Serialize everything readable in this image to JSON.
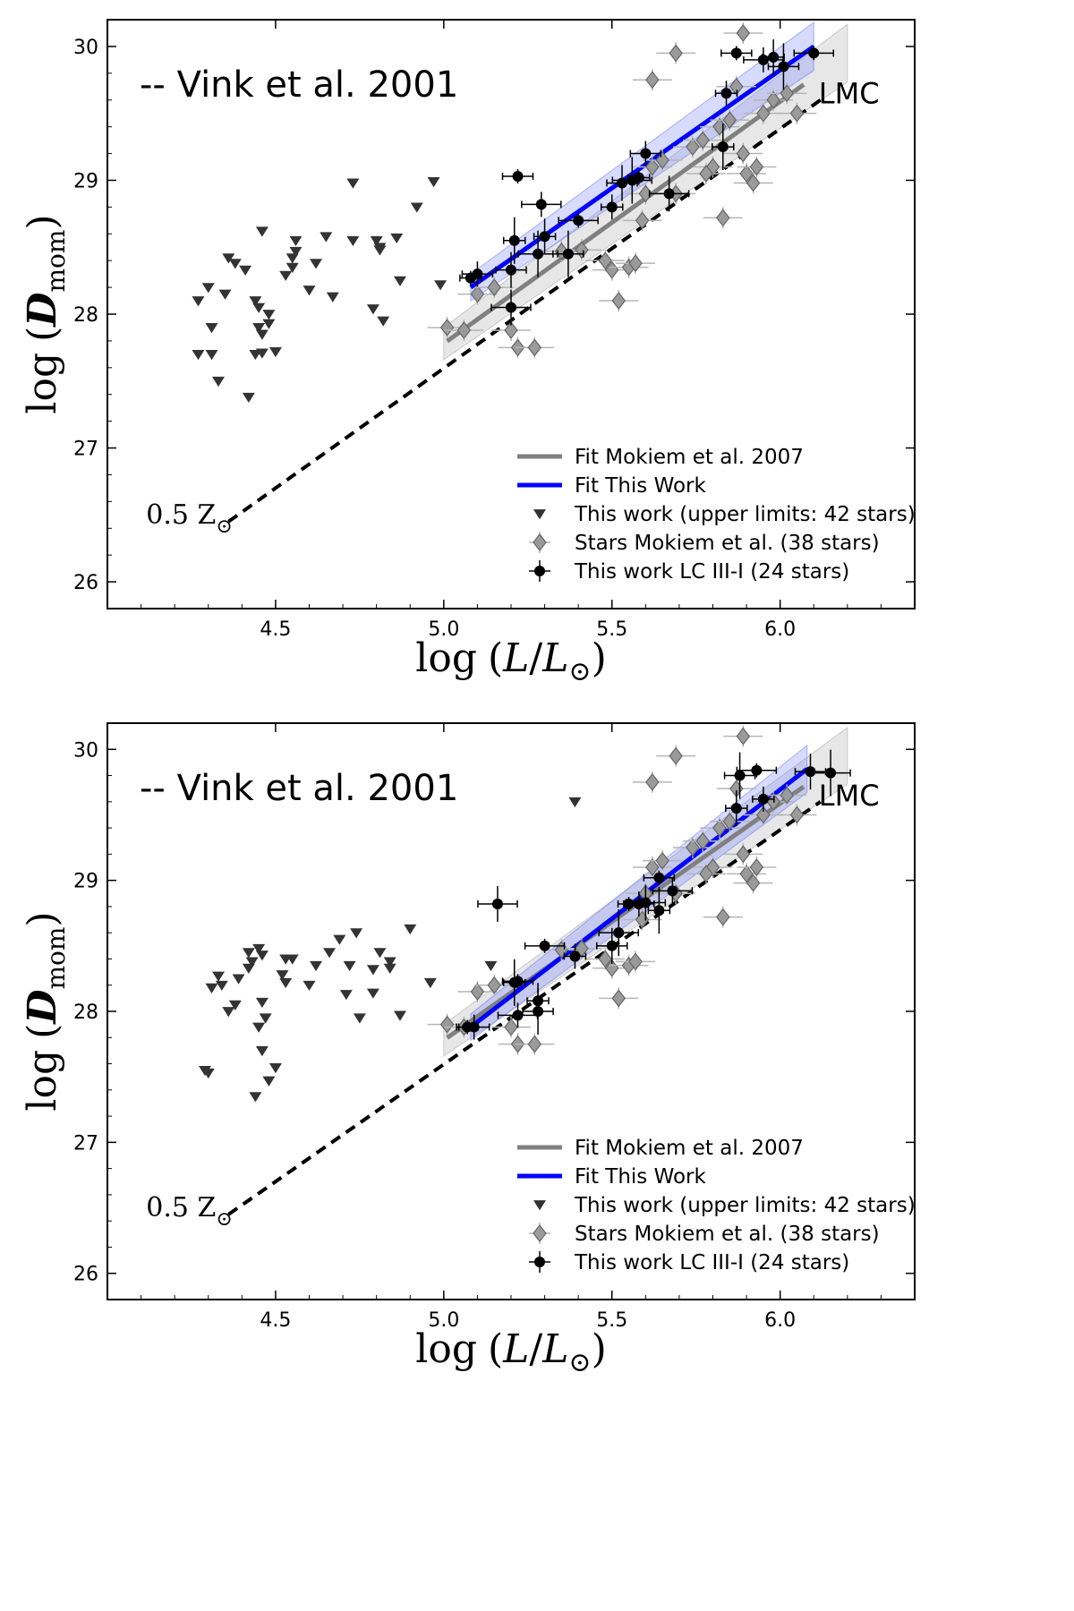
{
  "chart_data": [
    {
      "type": "scatter",
      "panel": "top",
      "xlabel": "log (L/L⊙)",
      "ylabel": "log (Dₘₒₘ)",
      "xlabel_main": "log",
      "xlabel_open": "(",
      "xlabel_L": "L",
      "xlabel_slash": "/",
      "xlabel_sub": "⊙",
      "xlabel_close": ")",
      "ylabel_main": "log",
      "ylabel_open": "(",
      "ylabel_D": "D",
      "ylabel_sub": "mom",
      "ylabel_close": ")",
      "xlim": [
        4.0,
        6.4
      ],
      "ylim": [
        25.8,
        30.2
      ],
      "xticks": [
        "4.5",
        "5.0",
        "5.5",
        "6.0"
      ],
      "yticks": [
        "26",
        "27",
        "28",
        "29",
        "30"
      ],
      "title_annotation": "-- Vink et al. 2001",
      "annotation_left": "0.5 Z⊙",
      "annotation_left_main": "0.5 Z",
      "annotation_left_sub": "⊙",
      "annotation_right": "LMC",
      "legend": [
        "Fit Mokiem et al. 2007",
        "Fit This Work",
        "This work (upper limits: 42 stars)",
        "Stars Mokiem et al. (38 stars)",
        "This work LC III-I (24 stars)"
      ],
      "vink_line": {
        "x": [
          4.36,
          6.12
        ],
        "y": [
          26.45,
          29.6
        ]
      },
      "fit_mokiem": {
        "x": [
          5.0,
          6.2
        ],
        "y": [
          27.78,
          29.95
        ],
        "band": 0.12
      },
      "fit_this_work": {
        "x": [
          5.08,
          6.1
        ],
        "y": [
          28.2,
          30.0
        ],
        "band": 0.1
      },
      "series": [
        {
          "name": "This work (upper limits: 42 stars)",
          "x": [
            4.27,
            4.31,
            4.33,
            4.31,
            4.27,
            4.36,
            4.38,
            4.41,
            4.46,
            4.44,
            4.45,
            4.46,
            4.48,
            4.5,
            4.46,
            4.42,
            4.44,
            4.45,
            4.48,
            4.53,
            4.55,
            4.55,
            4.56,
            4.6,
            4.62,
            4.65,
            4.67,
            4.73,
            4.73,
            4.8,
            4.81,
            4.82,
            4.86,
            4.92,
            4.97,
            4.56,
            4.79,
            4.99,
            4.87,
            4.81,
            4.3,
            4.35
          ],
          "y": [
            28.1,
            27.9,
            27.5,
            27.7,
            27.7,
            28.42,
            28.38,
            28.33,
            28.62,
            28.1,
            28.05,
            27.85,
            27.93,
            27.72,
            27.71,
            27.38,
            27.7,
            27.9,
            28.0,
            28.29,
            28.35,
            28.42,
            28.55,
            28.18,
            28.38,
            28.58,
            28.13,
            28.98,
            28.55,
            28.55,
            28.5,
            27.95,
            28.57,
            28.8,
            28.99,
            28.47,
            28.04,
            28.22,
            28.25,
            28.48,
            28.2,
            28.15
          ]
        },
        {
          "name": "Stars Mokiem et al. (38 stars)",
          "x": [
            5.01,
            5.06,
            5.1,
            5.15,
            5.2,
            5.22,
            5.27,
            5.35,
            5.41,
            5.48,
            5.5,
            5.52,
            5.55,
            5.57,
            5.59,
            5.6,
            5.62,
            5.65,
            5.69,
            5.74,
            5.77,
            5.8,
            5.82,
            5.85,
            5.87,
            5.89,
            5.9,
            5.92,
            5.93,
            5.95,
            5.98,
            6.02,
            6.05,
            5.62,
            5.69,
            5.89,
            5.78,
            5.83
          ],
          "y": [
            27.9,
            27.88,
            28.15,
            28.2,
            27.88,
            27.75,
            27.75,
            28.47,
            28.48,
            28.4,
            28.33,
            28.1,
            28.35,
            28.38,
            28.7,
            28.9,
            29.1,
            29.15,
            28.9,
            29.25,
            29.3,
            29.1,
            29.4,
            29.45,
            29.7,
            29.2,
            29.05,
            28.98,
            29.1,
            29.5,
            29.6,
            29.65,
            29.5,
            29.75,
            29.95,
            30.1,
            29.05,
            28.72
          ]
        },
        {
          "name": "This work LC III-I (24 stars)",
          "x": [
            5.08,
            5.1,
            5.2,
            5.21,
            5.22,
            5.29,
            5.3,
            5.37,
            5.4,
            5.5,
            5.53,
            5.56,
            5.58,
            5.6,
            5.67,
            5.83,
            5.87,
            5.95,
            5.98,
            6.01,
            6.1,
            5.84,
            5.2,
            5.28
          ],
          "y": [
            28.27,
            28.3,
            28.05,
            28.55,
            29.03,
            28.82,
            28.58,
            28.45,
            28.7,
            28.8,
            28.98,
            29.0,
            29.02,
            29.2,
            28.9,
            29.25,
            29.95,
            29.9,
            29.92,
            29.85,
            29.95,
            29.65,
            28.33,
            28.45
          ]
        }
      ]
    },
    {
      "type": "scatter",
      "panel": "bottom",
      "xlabel": "log (L/L⊙)",
      "ylabel": "log (Dₘₒₘ)",
      "xlabel_main": "log",
      "xlabel_open": "(",
      "xlabel_L": "L",
      "xlabel_slash": "/",
      "xlabel_sub": "⊙",
      "xlabel_close": ")",
      "ylabel_main": "log",
      "ylabel_open": "(",
      "ylabel_D": "D",
      "ylabel_sub": "mom",
      "ylabel_close": ")",
      "xlim": [
        4.0,
        6.4
      ],
      "ylim": [
        25.8,
        30.2
      ],
      "xticks": [
        "4.5",
        "5.0",
        "5.5",
        "6.0"
      ],
      "yticks": [
        "26",
        "27",
        "28",
        "29",
        "30"
      ],
      "title_annotation": "-- Vink et al. 2001",
      "annotation_left": "0.5 Z⊙",
      "annotation_left_main": "0.5 Z",
      "annotation_left_sub": "⊙",
      "annotation_right": "LMC",
      "legend": [
        "Fit Mokiem et al. 2007",
        "Fit This Work",
        "This work (upper limits: 42 stars)",
        "Stars Mokiem et al. (38 stars)",
        "This work LC III-I (24 stars)"
      ],
      "vink_line": {
        "x": [
          4.36,
          6.12
        ],
        "y": [
          26.45,
          29.6
        ]
      },
      "fit_mokiem": {
        "x": [
          5.0,
          6.2
        ],
        "y": [
          27.78,
          29.95
        ],
        "band": 0.12
      },
      "fit_this_work": {
        "x": [
          5.08,
          6.08
        ],
        "y": [
          27.88,
          29.85
        ],
        "band": 0.1
      },
      "series": [
        {
          "name": "This work (upper limits: 42 stars)",
          "x": [
            4.29,
            4.33,
            4.34,
            4.31,
            4.3,
            4.38,
            4.39,
            4.42,
            4.43,
            4.45,
            4.46,
            4.46,
            4.47,
            4.45,
            4.44,
            4.48,
            4.5,
            4.52,
            4.53,
            4.55,
            4.6,
            4.62,
            4.66,
            4.72,
            4.74,
            4.75,
            4.79,
            4.81,
            4.84,
            4.84,
            4.87,
            4.9,
            4.96,
            5.14,
            5.39,
            4.46,
            4.36,
            4.42,
            4.53,
            4.71,
            4.79,
            4.69
          ],
          "y": [
            27.55,
            28.27,
            28.2,
            28.18,
            27.53,
            28.05,
            28.25,
            28.45,
            28.38,
            28.48,
            28.43,
            28.07,
            27.95,
            27.88,
            27.35,
            27.47,
            27.57,
            28.28,
            28.22,
            28.4,
            28.2,
            28.35,
            28.45,
            28.35,
            28.6,
            27.95,
            28.32,
            28.45,
            28.38,
            28.33,
            27.97,
            28.63,
            28.22,
            28.35,
            29.6,
            27.7,
            28.0,
            28.33,
            28.4,
            28.13,
            28.14,
            28.55
          ]
        },
        {
          "name": "Stars Mokiem et al. (38 stars)",
          "x": [
            5.01,
            5.06,
            5.1,
            5.15,
            5.2,
            5.22,
            5.27,
            5.35,
            5.41,
            5.48,
            5.5,
            5.52,
            5.55,
            5.57,
            5.59,
            5.6,
            5.62,
            5.65,
            5.69,
            5.74,
            5.77,
            5.8,
            5.82,
            5.85,
            5.87,
            5.89,
            5.9,
            5.92,
            5.93,
            5.95,
            5.98,
            6.02,
            6.05,
            5.62,
            5.69,
            5.89,
            5.78,
            5.83
          ],
          "y": [
            27.9,
            27.88,
            28.15,
            28.2,
            27.88,
            27.75,
            27.75,
            28.47,
            28.48,
            28.4,
            28.33,
            28.1,
            28.35,
            28.38,
            28.7,
            28.9,
            29.1,
            29.15,
            28.9,
            29.25,
            29.3,
            29.1,
            29.4,
            29.45,
            29.7,
            29.2,
            29.05,
            28.98,
            29.1,
            29.5,
            29.6,
            29.65,
            29.5,
            29.75,
            29.95,
            30.1,
            29.05,
            28.72
          ]
        },
        {
          "name": "This work LC III-I (24 stars)",
          "x": [
            5.07,
            5.09,
            5.16,
            5.21,
            5.22,
            5.22,
            5.28,
            5.28,
            5.3,
            5.39,
            5.5,
            5.52,
            5.55,
            5.58,
            5.6,
            5.64,
            5.64,
            5.68,
            5.87,
            5.88,
            5.93,
            5.95,
            6.09,
            6.15
          ],
          "y": [
            27.88,
            27.88,
            28.82,
            28.22,
            28.23,
            27.97,
            28.08,
            28.0,
            28.5,
            28.42,
            28.5,
            28.6,
            28.82,
            28.82,
            28.83,
            28.77,
            29.02,
            28.92,
            29.55,
            29.8,
            29.84,
            29.62,
            29.83,
            29.82
          ]
        }
      ]
    }
  ]
}
